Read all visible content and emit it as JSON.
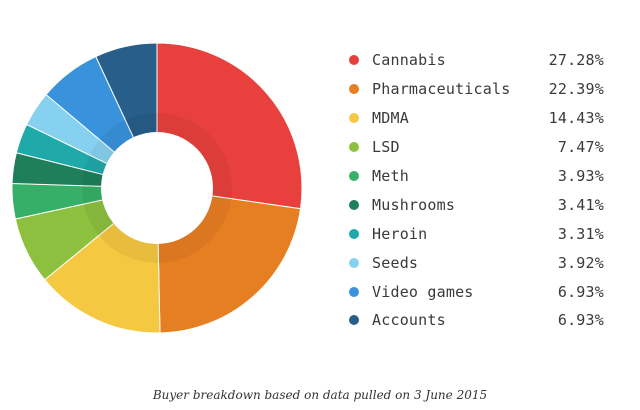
{
  "chart_data": {
    "type": "pie",
    "style": "donut",
    "categories": [
      "Cannabis",
      "Pharmaceuticals",
      "MDMA",
      "LSD",
      "Meth",
      "Mushrooms",
      "Heroin",
      "Seeds",
      "Video games",
      "Accounts"
    ],
    "values": [
      27.28,
      22.39,
      14.43,
      7.47,
      3.93,
      3.41,
      3.31,
      3.92,
      6.93,
      6.93
    ],
    "value_labels": [
      "27.28%",
      "22.39%",
      "14.43%",
      "7.47%",
      "3.93%",
      "3.41%",
      "3.31%",
      "3.92%",
      "6.93%",
      "6.93%"
    ],
    "colors": [
      "#e8413d",
      "#e67e22",
      "#f5c842",
      "#8dc03f",
      "#36b068",
      "#1e7f5a",
      "#1fa9a8",
      "#87d1f0",
      "#3892dc",
      "#275e8a"
    ],
    "legend_position": "right"
  },
  "caption": "Buyer breakdown based on data pulled on 3 June 2015"
}
